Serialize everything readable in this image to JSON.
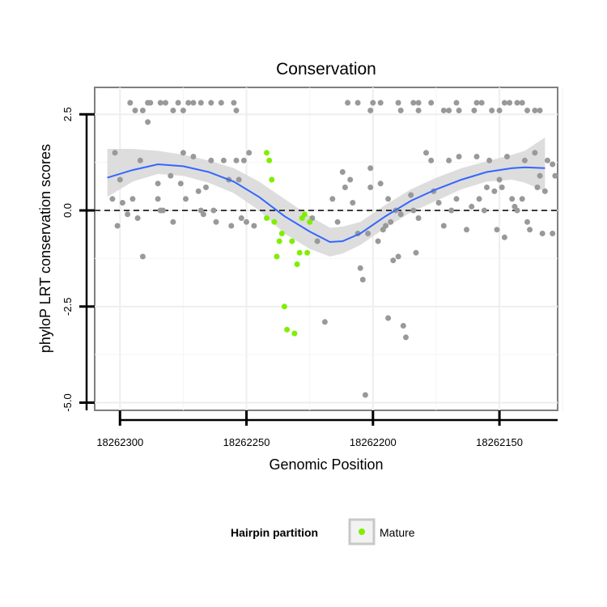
{
  "chart_data": {
    "type": "scatter",
    "title": "Conservation",
    "xlabel": "Genomic Position",
    "ylabel": "phyloP LRT conservation scores",
    "xlim": [
      18262310,
      18262127
    ],
    "ylim": [
      -5.2,
      3.2
    ],
    "x_reversed": true,
    "x_ticks": [
      18262300,
      18262250,
      18262200,
      18262150
    ],
    "x_tick_labels": [
      "18262300",
      "18262250",
      "18262200",
      "18262150"
    ],
    "y_ticks": [
      -5.0,
      -2.5,
      0.0,
      2.5
    ],
    "y_tick_labels": [
      "-5.0",
      "-2.5",
      "0.0",
      "2.5"
    ],
    "reference_line": {
      "y": 0,
      "style": "dashed"
    },
    "legend": {
      "title": "Hairpin partition",
      "position": "bottom",
      "entries": [
        {
          "label": "Mature",
          "color": "#80ee00"
        }
      ]
    },
    "colors": {
      "other": "#999999",
      "mature": "#80ee00",
      "smooth": "#3366ff",
      "band": "#d9d9d9"
    },
    "series": [
      {
        "name": "Other",
        "points": [
          [
            18262296,
            2.8
          ],
          [
            18262294,
            2.6
          ],
          [
            18262291,
            2.6
          ],
          [
            18262289,
            2.8
          ],
          [
            18262288,
            2.8
          ],
          [
            18262284,
            2.8
          ],
          [
            18262282,
            2.8
          ],
          [
            18262279,
            2.6
          ],
          [
            18262277,
            2.8
          ],
          [
            18262275,
            2.6
          ],
          [
            18262273,
            2.8
          ],
          [
            18262271,
            2.8
          ],
          [
            18262268,
            2.8
          ],
          [
            18262264,
            2.8
          ],
          [
            18262260,
            2.8
          ],
          [
            18262255,
            2.8
          ],
          [
            18262254,
            2.6
          ],
          [
            18262210,
            2.8
          ],
          [
            18262206,
            2.8
          ],
          [
            18262200,
            2.8
          ],
          [
            18262201,
            2.6
          ],
          [
            18262197,
            2.8
          ],
          [
            18262190,
            2.8
          ],
          [
            18262189,
            2.6
          ],
          [
            18262184,
            2.8
          ],
          [
            18262182,
            2.8
          ],
          [
            18262182,
            2.6
          ],
          [
            18262177,
            2.8
          ],
          [
            18262172,
            2.6
          ],
          [
            18262170,
            2.6
          ],
          [
            18262167,
            2.8
          ],
          [
            18262166,
            2.6
          ],
          [
            18262160,
            2.6
          ],
          [
            18262159,
            2.8
          ],
          [
            18262157,
            2.8
          ],
          [
            18262153,
            2.6
          ],
          [
            18262150,
            2.6
          ],
          [
            18262148,
            2.8
          ],
          [
            18262146,
            2.8
          ],
          [
            18262143,
            2.8
          ],
          [
            18262141,
            2.8
          ],
          [
            18262139,
            2.6
          ],
          [
            18262136,
            2.6
          ],
          [
            18262134,
            2.6
          ],
          [
            18262302,
            1.5
          ],
          [
            18262300,
            0.8
          ],
          [
            18262303,
            0.3
          ],
          [
            18262301,
            -0.4
          ],
          [
            18262299,
            0.2
          ],
          [
            18262297,
            -0.1
          ],
          [
            18262295,
            0.3
          ],
          [
            18262293,
            -0.2
          ],
          [
            18262292,
            1.3
          ],
          [
            18262291,
            -1.2
          ],
          [
            18262289,
            2.3
          ],
          [
            18262285,
            0.7
          ],
          [
            18262285,
            0.3
          ],
          [
            18262284,
            0.0
          ],
          [
            18262283,
            0.0
          ],
          [
            18262280,
            0.9
          ],
          [
            18262279,
            -0.3
          ],
          [
            18262276,
            0.7
          ],
          [
            18262275,
            1.5
          ],
          [
            18262274,
            0.3
          ],
          [
            18262271,
            1.4
          ],
          [
            18262269,
            0.5
          ],
          [
            18262268,
            0.0
          ],
          [
            18262267,
            -0.1
          ],
          [
            18262266,
            0.6
          ],
          [
            18262264,
            1.3
          ],
          [
            18262263,
            0.0
          ],
          [
            18262262,
            -0.3
          ],
          [
            18262259,
            1.3
          ],
          [
            18262257,
            0.8
          ],
          [
            18262256,
            -0.4
          ],
          [
            18262254,
            1.3
          ],
          [
            18262253,
            0.8
          ],
          [
            18262252,
            -0.2
          ],
          [
            18262251,
            1.3
          ],
          [
            18262250,
            -0.3
          ],
          [
            18262249,
            1.5
          ],
          [
            18262247,
            -0.4
          ],
          [
            18262224,
            -0.2
          ],
          [
            18262222,
            -0.8
          ],
          [
            18262219,
            -2.9
          ],
          [
            18262216,
            0.3
          ],
          [
            18262214,
            -0.3
          ],
          [
            18262212,
            1.0
          ],
          [
            18262211,
            0.6
          ],
          [
            18262209,
            0.8
          ],
          [
            18262208,
            0.2
          ],
          [
            18262206,
            -0.6
          ],
          [
            18262205,
            -1.5
          ],
          [
            18262204,
            -1.8
          ],
          [
            18262202,
            -0.6
          ],
          [
            18262201,
            0.6
          ],
          [
            18262201,
            1.1
          ],
          [
            18262198,
            -0.8
          ],
          [
            18262196,
            -0.5
          ],
          [
            18262195,
            -0.4
          ],
          [
            18262194,
            0.3
          ],
          [
            18262194,
            -2.8
          ],
          [
            18262193,
            -0.3
          ],
          [
            18262192,
            -1.3
          ],
          [
            18262191,
            0.0
          ],
          [
            18262190,
            -1.2
          ],
          [
            18262189,
            -0.1
          ],
          [
            18262188,
            -3.0
          ],
          [
            18262187,
            -3.3
          ],
          [
            18262185,
            0.4
          ],
          [
            18262184,
            0.0
          ],
          [
            18262183,
            -1.1
          ],
          [
            18262182,
            -0.2
          ],
          [
            18262179,
            1.5
          ],
          [
            18262177,
            1.3
          ],
          [
            18262176,
            0.5
          ],
          [
            18262174,
            0.2
          ],
          [
            18262172,
            -0.4
          ],
          [
            18262170,
            1.3
          ],
          [
            18262169,
            0.0
          ],
          [
            18262167,
            0.3
          ],
          [
            18262166,
            1.4
          ],
          [
            18262163,
            -0.5
          ],
          [
            18262161,
            0.1
          ],
          [
            18262159,
            1.4
          ],
          [
            18262158,
            0.3
          ],
          [
            18262156,
            0.0
          ],
          [
            18262155,
            0.6
          ],
          [
            18262154,
            1.3
          ],
          [
            18262152,
            0.5
          ],
          [
            18262151,
            -0.5
          ],
          [
            18262150,
            0.8
          ],
          [
            18262149,
            0.6
          ],
          [
            18262148,
            -0.7
          ],
          [
            18262147,
            1.4
          ],
          [
            18262145,
            0.3
          ],
          [
            18262144,
            0.1
          ],
          [
            18262143,
            0.0
          ],
          [
            18262141,
            0.3
          ],
          [
            18262140,
            1.3
          ],
          [
            18262139,
            -0.3
          ],
          [
            18262138,
            -0.5
          ],
          [
            18262136,
            1.5
          ],
          [
            18262135,
            0.6
          ],
          [
            18262134,
            0.9
          ],
          [
            18262133,
            -0.6
          ],
          [
            18262132,
            0.5
          ],
          [
            18262131,
            1.3
          ],
          [
            18262129,
            1.2
          ],
          [
            18262129,
            -0.6
          ],
          [
            18262128,
            0.9
          ],
          [
            18262203,
            -4.8
          ],
          [
            18262197,
            0.7
          ]
        ]
      },
      {
        "name": "Mature",
        "points": [
          [
            18262242,
            1.5
          ],
          [
            18262241,
            1.3
          ],
          [
            18262240,
            0.8
          ],
          [
            18262242,
            -0.2
          ],
          [
            18262239,
            -0.3
          ],
          [
            18262238,
            -1.2
          ],
          [
            18262237,
            -0.8
          ],
          [
            18262236,
            -0.6
          ],
          [
            18262235,
            -2.5
          ],
          [
            18262234,
            -3.1
          ],
          [
            18262232,
            -0.8
          ],
          [
            18262231,
            -3.2
          ],
          [
            18262230,
            -1.4
          ],
          [
            18262229,
            -1.1
          ],
          [
            18262228,
            -0.2
          ],
          [
            18262227,
            -0.1
          ],
          [
            18262226,
            -1.1
          ],
          [
            18262225,
            -0.3
          ]
        ]
      }
    ],
    "smooth": {
      "method": "loess",
      "x": [
        18262305,
        18262295,
        18262285,
        18262275,
        18262265,
        18262255,
        18262245,
        18262235,
        18262225,
        18262217,
        18262212,
        18262205,
        18262195,
        18262185,
        18262175,
        18262165,
        18262155,
        18262145,
        18262140,
        18262132
      ],
      "y": [
        0.85,
        1.05,
        1.2,
        1.15,
        1.0,
        0.75,
        0.35,
        -0.15,
        -0.55,
        -0.82,
        -0.8,
        -0.6,
        -0.15,
        0.25,
        0.55,
        0.8,
        1.0,
        1.1,
        1.12,
        1.1
      ],
      "lower": [
        0.35,
        0.75,
        0.95,
        0.9,
        0.72,
        0.45,
        0.0,
        -0.6,
        -1.0,
        -1.2,
        -1.12,
        -0.9,
        -0.45,
        -0.05,
        0.25,
        0.55,
        0.75,
        0.8,
        0.72,
        0.5
      ],
      "upper": [
        1.6,
        1.6,
        1.55,
        1.45,
        1.3,
        1.1,
        0.75,
        0.3,
        -0.15,
        -0.45,
        -0.42,
        -0.3,
        0.15,
        0.55,
        0.85,
        1.1,
        1.28,
        1.45,
        1.55,
        1.9
      ]
    }
  }
}
